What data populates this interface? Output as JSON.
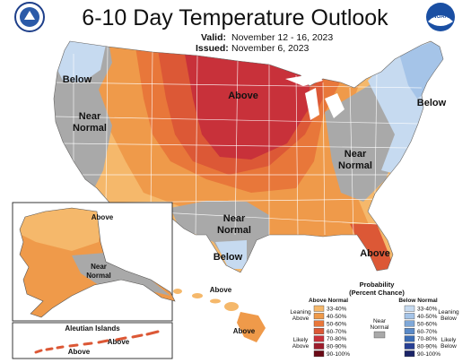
{
  "header": {
    "title": "6-10 Day Temperature Outlook",
    "valid_label": "Valid:",
    "valid_dates": "November 12 - 16, 2023",
    "issued_label": "Issued:",
    "issued_date": "November 6, 2023"
  },
  "logos": {
    "left": "doc-seal",
    "right": "noaa-logo",
    "right_text": "NOAA"
  },
  "map_labels": {
    "above_main": "Above",
    "below_nw": "Below",
    "near_normal_w1": "Near",
    "near_normal_w2": "Normal",
    "below_ne": "Below",
    "near_normal_e1": "Near",
    "near_normal_e2": "Normal",
    "near_normal_s1": "Near",
    "near_normal_s2": "Normal",
    "below_tx": "Below",
    "above_fl": "Above",
    "alaska_above": "Above",
    "alaska_nn1": "Near",
    "alaska_nn2": "Normal",
    "aleutian_title": "Aleutian Islands",
    "aleutian_above1": "Above",
    "aleutian_above2": "Above",
    "hawaii_above1": "Above",
    "hawaii_above2": "Above"
  },
  "legend": {
    "title1": "Probability",
    "title2": "(Percent Chance)",
    "above_head": "Above Normal",
    "below_head": "Below Normal",
    "leaning_above1": "Leaning",
    "leaning_above2": "Above",
    "likely_above1": "Likely",
    "likely_above2": "Above",
    "leaning_below1": "Leaning",
    "leaning_below2": "Below",
    "likely_below1": "Likely",
    "likely_below2": "Below",
    "near_normal1": "Near",
    "near_normal2": "Normal",
    "above_levels": [
      "33-40%",
      "40-50%",
      "50-60%",
      "60-70%",
      "70-80%",
      "80-90%",
      "90-100%"
    ],
    "below_levels": [
      "33-40%",
      "40-50%",
      "50-60%",
      "60-70%",
      "70-80%",
      "80-90%",
      "90-100%"
    ]
  },
  "colors": {
    "above": [
      "#f5b86b",
      "#ef9a4a",
      "#e8773a",
      "#dc5836",
      "#c8313a",
      "#9e1d2c",
      "#6b0a16"
    ],
    "below": [
      "#c6daf0",
      "#a5c4e8",
      "#7fa8d8",
      "#5a8ac8",
      "#3a6cb5",
      "#273f95",
      "#1a2468"
    ],
    "near_normal": "#a9a9a9"
  }
}
